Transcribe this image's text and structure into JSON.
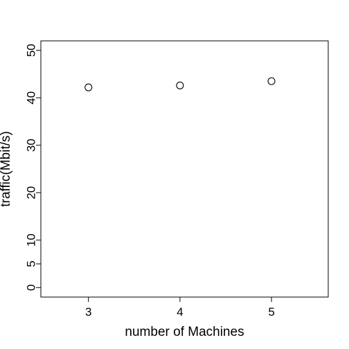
{
  "chart_data": {
    "type": "scatter",
    "title": "",
    "xlabel": "number of Machines",
    "ylabel": "traffic(Mbit/s)",
    "x": [
      3,
      4,
      5
    ],
    "y": [
      42.2,
      42.6,
      43.5
    ],
    "xlim": [
      2.48,
      5.62
    ],
    "ylim": [
      -2,
      52
    ],
    "x_ticks": [
      3,
      4,
      5
    ],
    "x_tick_labels": [
      "3",
      "4",
      "5"
    ],
    "y_ticks": [
      0,
      5,
      10,
      20,
      30,
      40,
      50
    ],
    "y_tick_labels": [
      "0",
      "5",
      "10",
      "20",
      "30",
      "40",
      "50"
    ],
    "grid": false,
    "marker": "open-circle",
    "colors": {
      "marker": "#000000",
      "axis": "#000000",
      "background": "#ffffff"
    }
  }
}
